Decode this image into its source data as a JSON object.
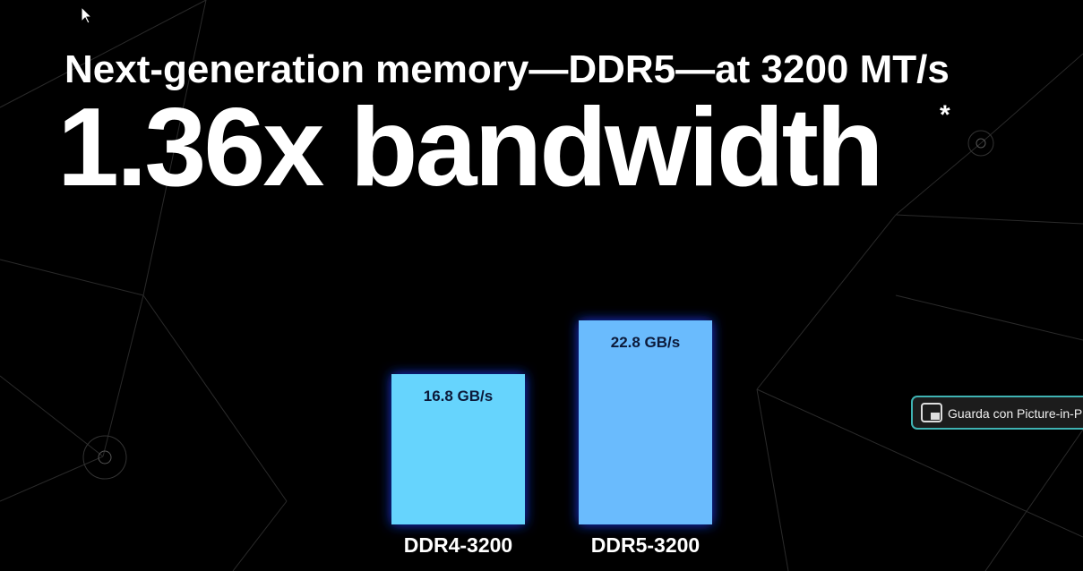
{
  "chart_data": {
    "type": "bar",
    "title": "Next-generation memory—DDR5—at 3200 MT/s",
    "subtitle": "1.36x bandwidth",
    "annotation": "*",
    "categories": [
      "DDR4-3200",
      "DDR5-3200"
    ],
    "values": [
      16.8,
      22.8
    ],
    "value_labels": [
      "16.8 GB/s",
      "22.8 GB/s"
    ],
    "colors": [
      "#66d4fd",
      "#6bbbfd"
    ]
  },
  "pip_button": "Guarda con Picture-in-Pic"
}
